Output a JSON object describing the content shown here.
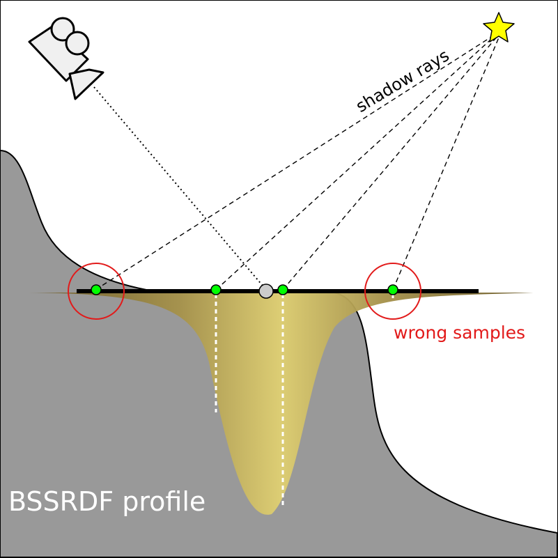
{
  "labels": {
    "shadow_rays": "shadow rays",
    "wrong_samples": "wrong samples",
    "bssrdf_profile": "BSSRDF profile"
  },
  "colors": {
    "surface": "#999999",
    "profile_peak": "#e0d072",
    "profile_edge": "#6b5a2a",
    "sample_point": "#00ff00",
    "shading_point": "#cccccc",
    "highlight_circle": "#e21a1a",
    "wrong_samples_text": "#e21a1a",
    "bssrdf_text": "#ffffff",
    "star": "#ffff00"
  },
  "icons": {
    "camera": "movie-camera-icon",
    "light": "star-icon"
  }
}
